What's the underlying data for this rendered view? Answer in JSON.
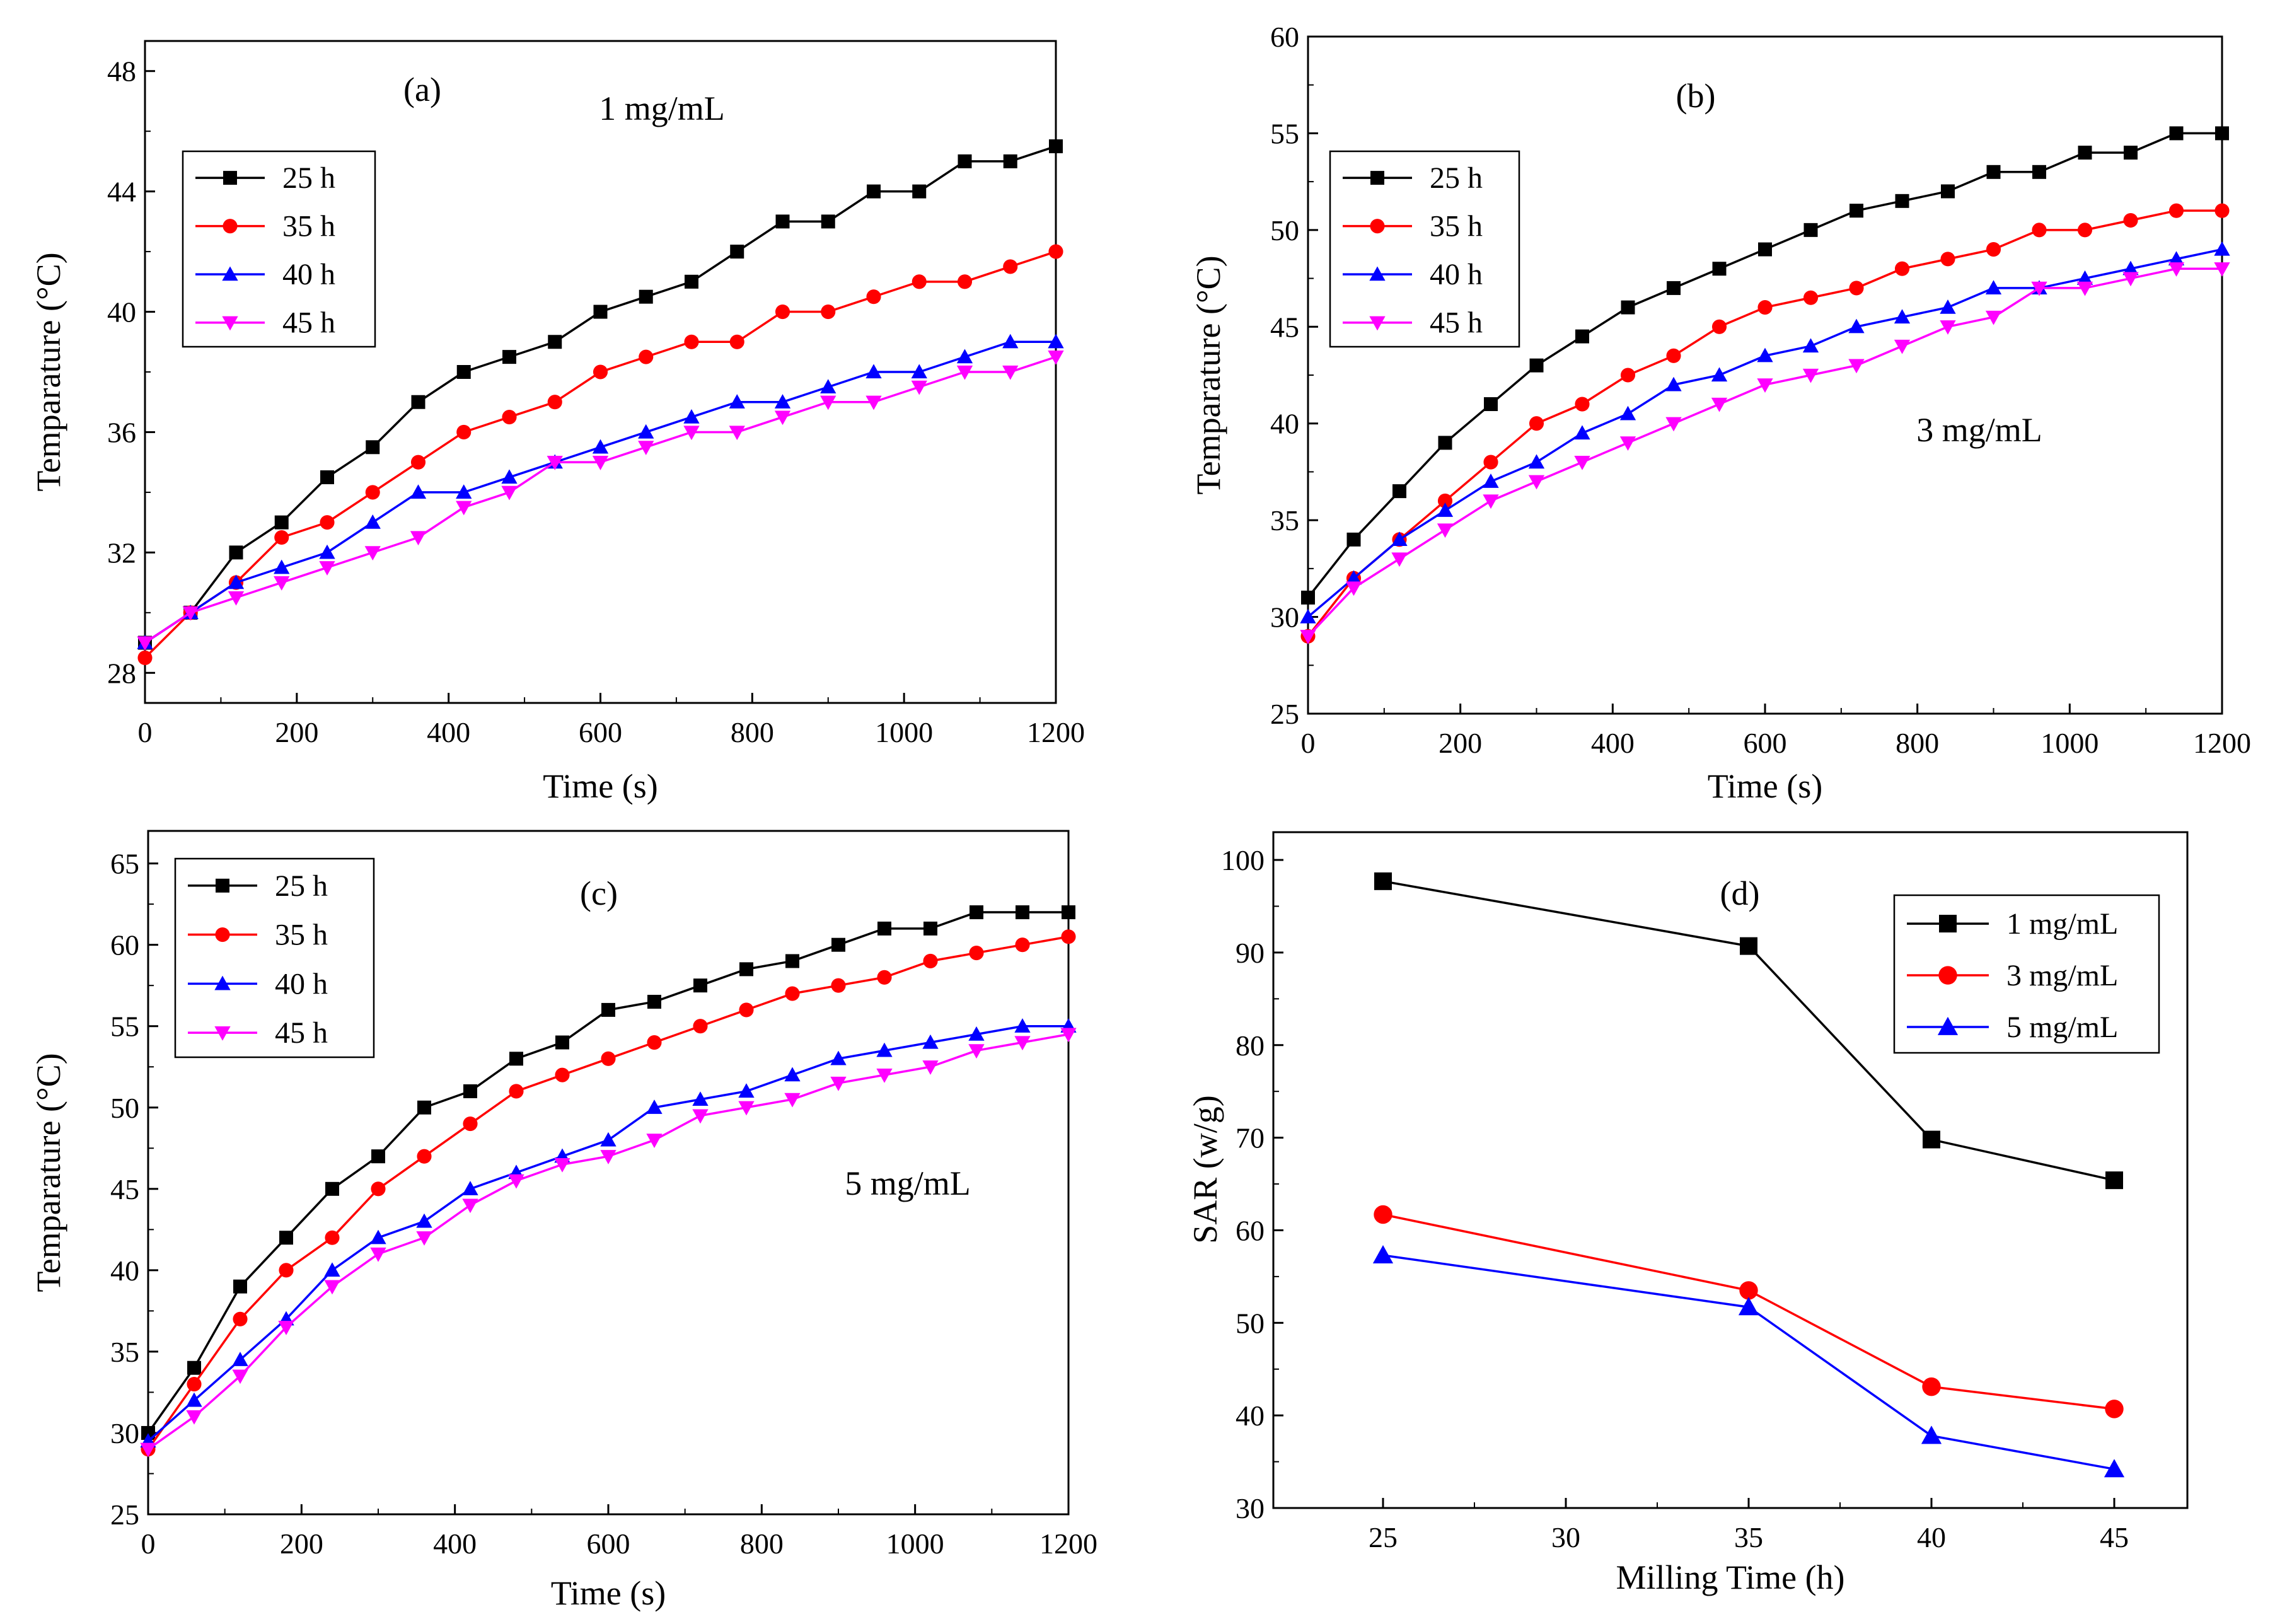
{
  "colors": {
    "black": "#000000",
    "red": "#ff0000",
    "blue": "#0000ff",
    "magenta": "#ff00ff"
  },
  "chart_data": [
    {
      "id": "a",
      "type": "line",
      "panel_label": "(a)",
      "annotation": "1 mg/mL",
      "xlabel": "Time (s)",
      "ylabel": "Temparature (°C)",
      "xlim": [
        0,
        1200
      ],
      "ylim": [
        27,
        49
      ],
      "xticks": [
        0,
        200,
        400,
        600,
        800,
        1000,
        1200
      ],
      "yticks": [
        28,
        32,
        36,
        40,
        44,
        48
      ],
      "legend_position": "upper-left",
      "x": [
        0,
        60,
        120,
        180,
        240,
        300,
        360,
        420,
        480,
        540,
        600,
        660,
        720,
        780,
        840,
        900,
        960,
        1020,
        1080,
        1140,
        1200
      ],
      "series": [
        {
          "name": "25 h",
          "color": "#000000",
          "marker": "square",
          "values": [
            29,
            30,
            32,
            33,
            34.5,
            35.5,
            37,
            38,
            38.5,
            39,
            40,
            40.5,
            41,
            42,
            43,
            43,
            44,
            44,
            45,
            45,
            45.5
          ]
        },
        {
          "name": "35 h",
          "color": "#ff0000",
          "marker": "circle",
          "values": [
            28.5,
            30,
            31,
            32.5,
            33,
            34,
            35,
            36,
            36.5,
            37,
            38,
            38.5,
            39,
            39,
            40,
            40,
            40.5,
            41,
            41,
            41.5,
            42
          ]
        },
        {
          "name": "40 h",
          "color": "#0000ff",
          "marker": "triangle-up",
          "values": [
            29,
            30,
            31,
            31.5,
            32,
            33,
            34,
            34,
            34.5,
            35,
            35.5,
            36,
            36.5,
            37,
            37,
            37.5,
            38,
            38,
            38.5,
            39,
            39
          ]
        },
        {
          "name": "45 h",
          "color": "#ff00ff",
          "marker": "triangle-down",
          "values": [
            29,
            30,
            30.5,
            31,
            31.5,
            32,
            32.5,
            33.5,
            34,
            35,
            35,
            35.5,
            36,
            36,
            36.5,
            37,
            37,
            37.5,
            38,
            38,
            38.5
          ]
        }
      ]
    },
    {
      "id": "b",
      "type": "line",
      "panel_label": "(b)",
      "annotation": "3 mg/mL",
      "xlabel": "Time (s)",
      "ylabel": "Temparature (°C)",
      "xlim": [
        0,
        1200
      ],
      "ylim": [
        25,
        60
      ],
      "xticks": [
        0,
        200,
        400,
        600,
        800,
        1000,
        1200
      ],
      "yticks": [
        25,
        30,
        35,
        40,
        45,
        50,
        55,
        60
      ],
      "legend_position": "upper-left",
      "x": [
        0,
        60,
        120,
        180,
        240,
        300,
        360,
        420,
        480,
        540,
        600,
        660,
        720,
        780,
        840,
        900,
        960,
        1020,
        1080,
        1140,
        1200
      ],
      "series": [
        {
          "name": "25 h",
          "color": "#000000",
          "marker": "square",
          "values": [
            31,
            34,
            36.5,
            39,
            41,
            43,
            44.5,
            46,
            47,
            48,
            49,
            50,
            51,
            51.5,
            52,
            53,
            53,
            54,
            54,
            55,
            55
          ]
        },
        {
          "name": "35 h",
          "color": "#ff0000",
          "marker": "circle",
          "values": [
            29,
            32,
            34,
            36,
            38,
            40,
            41,
            42.5,
            43.5,
            45,
            46,
            46.5,
            47,
            48,
            48.5,
            49,
            50,
            50,
            50.5,
            51,
            51
          ]
        },
        {
          "name": "40 h",
          "color": "#0000ff",
          "marker": "triangle-up",
          "values": [
            30,
            32,
            34,
            35.5,
            37,
            38,
            39.5,
            40.5,
            42,
            42.5,
            43.5,
            44,
            45,
            45.5,
            46,
            47,
            47,
            47.5,
            48,
            48.5,
            49
          ]
        },
        {
          "name": "45 h",
          "color": "#ff00ff",
          "marker": "triangle-down",
          "values": [
            29,
            31.5,
            33,
            34.5,
            36,
            37,
            38,
            39,
            40,
            41,
            42,
            42.5,
            43,
            44,
            45,
            45.5,
            47,
            47,
            47.5,
            48,
            48
          ]
        }
      ]
    },
    {
      "id": "c",
      "type": "line",
      "panel_label": "(c)",
      "annotation": "5 mg/mL",
      "xlabel": "Time (s)",
      "ylabel": "Temparature (°C)",
      "xlim": [
        0,
        1200
      ],
      "ylim": [
        25,
        67
      ],
      "xticks": [
        0,
        200,
        400,
        600,
        800,
        1000,
        1200
      ],
      "yticks": [
        25,
        30,
        35,
        40,
        45,
        50,
        55,
        60,
        65
      ],
      "legend_position": "upper-left",
      "x": [
        0,
        60,
        120,
        180,
        240,
        300,
        360,
        420,
        480,
        540,
        600,
        660,
        720,
        780,
        840,
        900,
        960,
        1020,
        1080,
        1140,
        1200
      ],
      "series": [
        {
          "name": "25 h",
          "color": "#000000",
          "marker": "square",
          "values": [
            30,
            34,
            39,
            42,
            45,
            47,
            50,
            51,
            53,
            54,
            56,
            56.5,
            57.5,
            58.5,
            59,
            60,
            61,
            61,
            62,
            62,
            62
          ]
        },
        {
          "name": "35 h",
          "color": "#ff0000",
          "marker": "circle",
          "values": [
            29,
            33,
            37,
            40,
            42,
            45,
            47,
            49,
            51,
            52,
            53,
            54,
            55,
            56,
            57,
            57.5,
            58,
            59,
            59.5,
            60,
            60.5
          ]
        },
        {
          "name": "40 h",
          "color": "#0000ff",
          "marker": "triangle-up",
          "values": [
            29.5,
            32,
            34.5,
            37,
            40,
            42,
            43,
            45,
            46,
            47,
            48,
            50,
            50.5,
            51,
            52,
            53,
            53.5,
            54,
            54.5,
            55,
            55
          ]
        },
        {
          "name": "45 h",
          "color": "#ff00ff",
          "marker": "triangle-down",
          "values": [
            29,
            31,
            33.5,
            36.5,
            39,
            41,
            42,
            44,
            45.5,
            46.5,
            47,
            48,
            49.5,
            50,
            50.5,
            51.5,
            52,
            52.5,
            53.5,
            54,
            54.5
          ]
        }
      ]
    },
    {
      "id": "d",
      "type": "line",
      "panel_label": "(d)",
      "xlabel": "Milling Time (h)",
      "ylabel": "SAR (w/g)",
      "xlim": [
        22,
        47
      ],
      "ylim": [
        30,
        103
      ],
      "xticks": [
        25,
        30,
        35,
        40,
        45
      ],
      "yticks": [
        30,
        40,
        50,
        60,
        70,
        80,
        90,
        100
      ],
      "legend_position": "upper-right",
      "x": [
        25,
        35,
        40,
        45
      ],
      "series": [
        {
          "name": "1 mg/mL",
          "color": "#000000",
          "marker": "square",
          "values": [
            97.7,
            90.7,
            69.8,
            65.4
          ]
        },
        {
          "name": "3 mg/mL",
          "color": "#ff0000",
          "marker": "circle",
          "values": [
            61.7,
            53.5,
            43.1,
            40.7
          ]
        },
        {
          "name": "5 mg/mL",
          "color": "#0000ff",
          "marker": "triangle-up",
          "values": [
            57.3,
            51.7,
            37.8,
            34.2
          ]
        }
      ]
    }
  ]
}
